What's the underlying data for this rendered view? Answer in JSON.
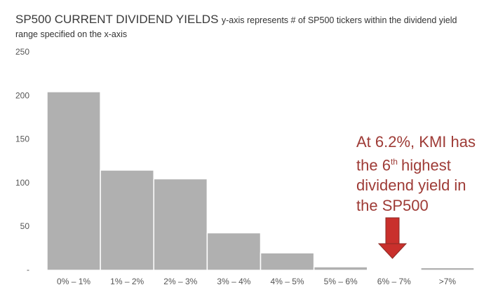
{
  "chart_data": {
    "type": "bar",
    "title": "SP500 CURRENT DIVIDEND YIELDS",
    "subtitle": "y-axis represents # of SP500 tickers within the dividend yield range specified on the x-axis",
    "categories": [
      "0% – 1%",
      "1% – 2%",
      "2% – 3%",
      "3% – 4%",
      "4% – 5%",
      "5% – 6%",
      "6% – 7%",
      ">7%"
    ],
    "values": [
      205,
      115,
      105,
      43,
      20,
      4,
      1,
      3
    ],
    "color": "#b0b0b0",
    "ylim": [
      0,
      250
    ],
    "yticks": [
      {
        "value": 0,
        "label": "-"
      },
      50,
      100,
      150,
      200,
      250
    ],
    "annotation": [
      "At 6.2%, KMI has",
      "the 6",
      "th",
      "highest",
      "dividend yield in",
      "the SP500"
    ]
  }
}
